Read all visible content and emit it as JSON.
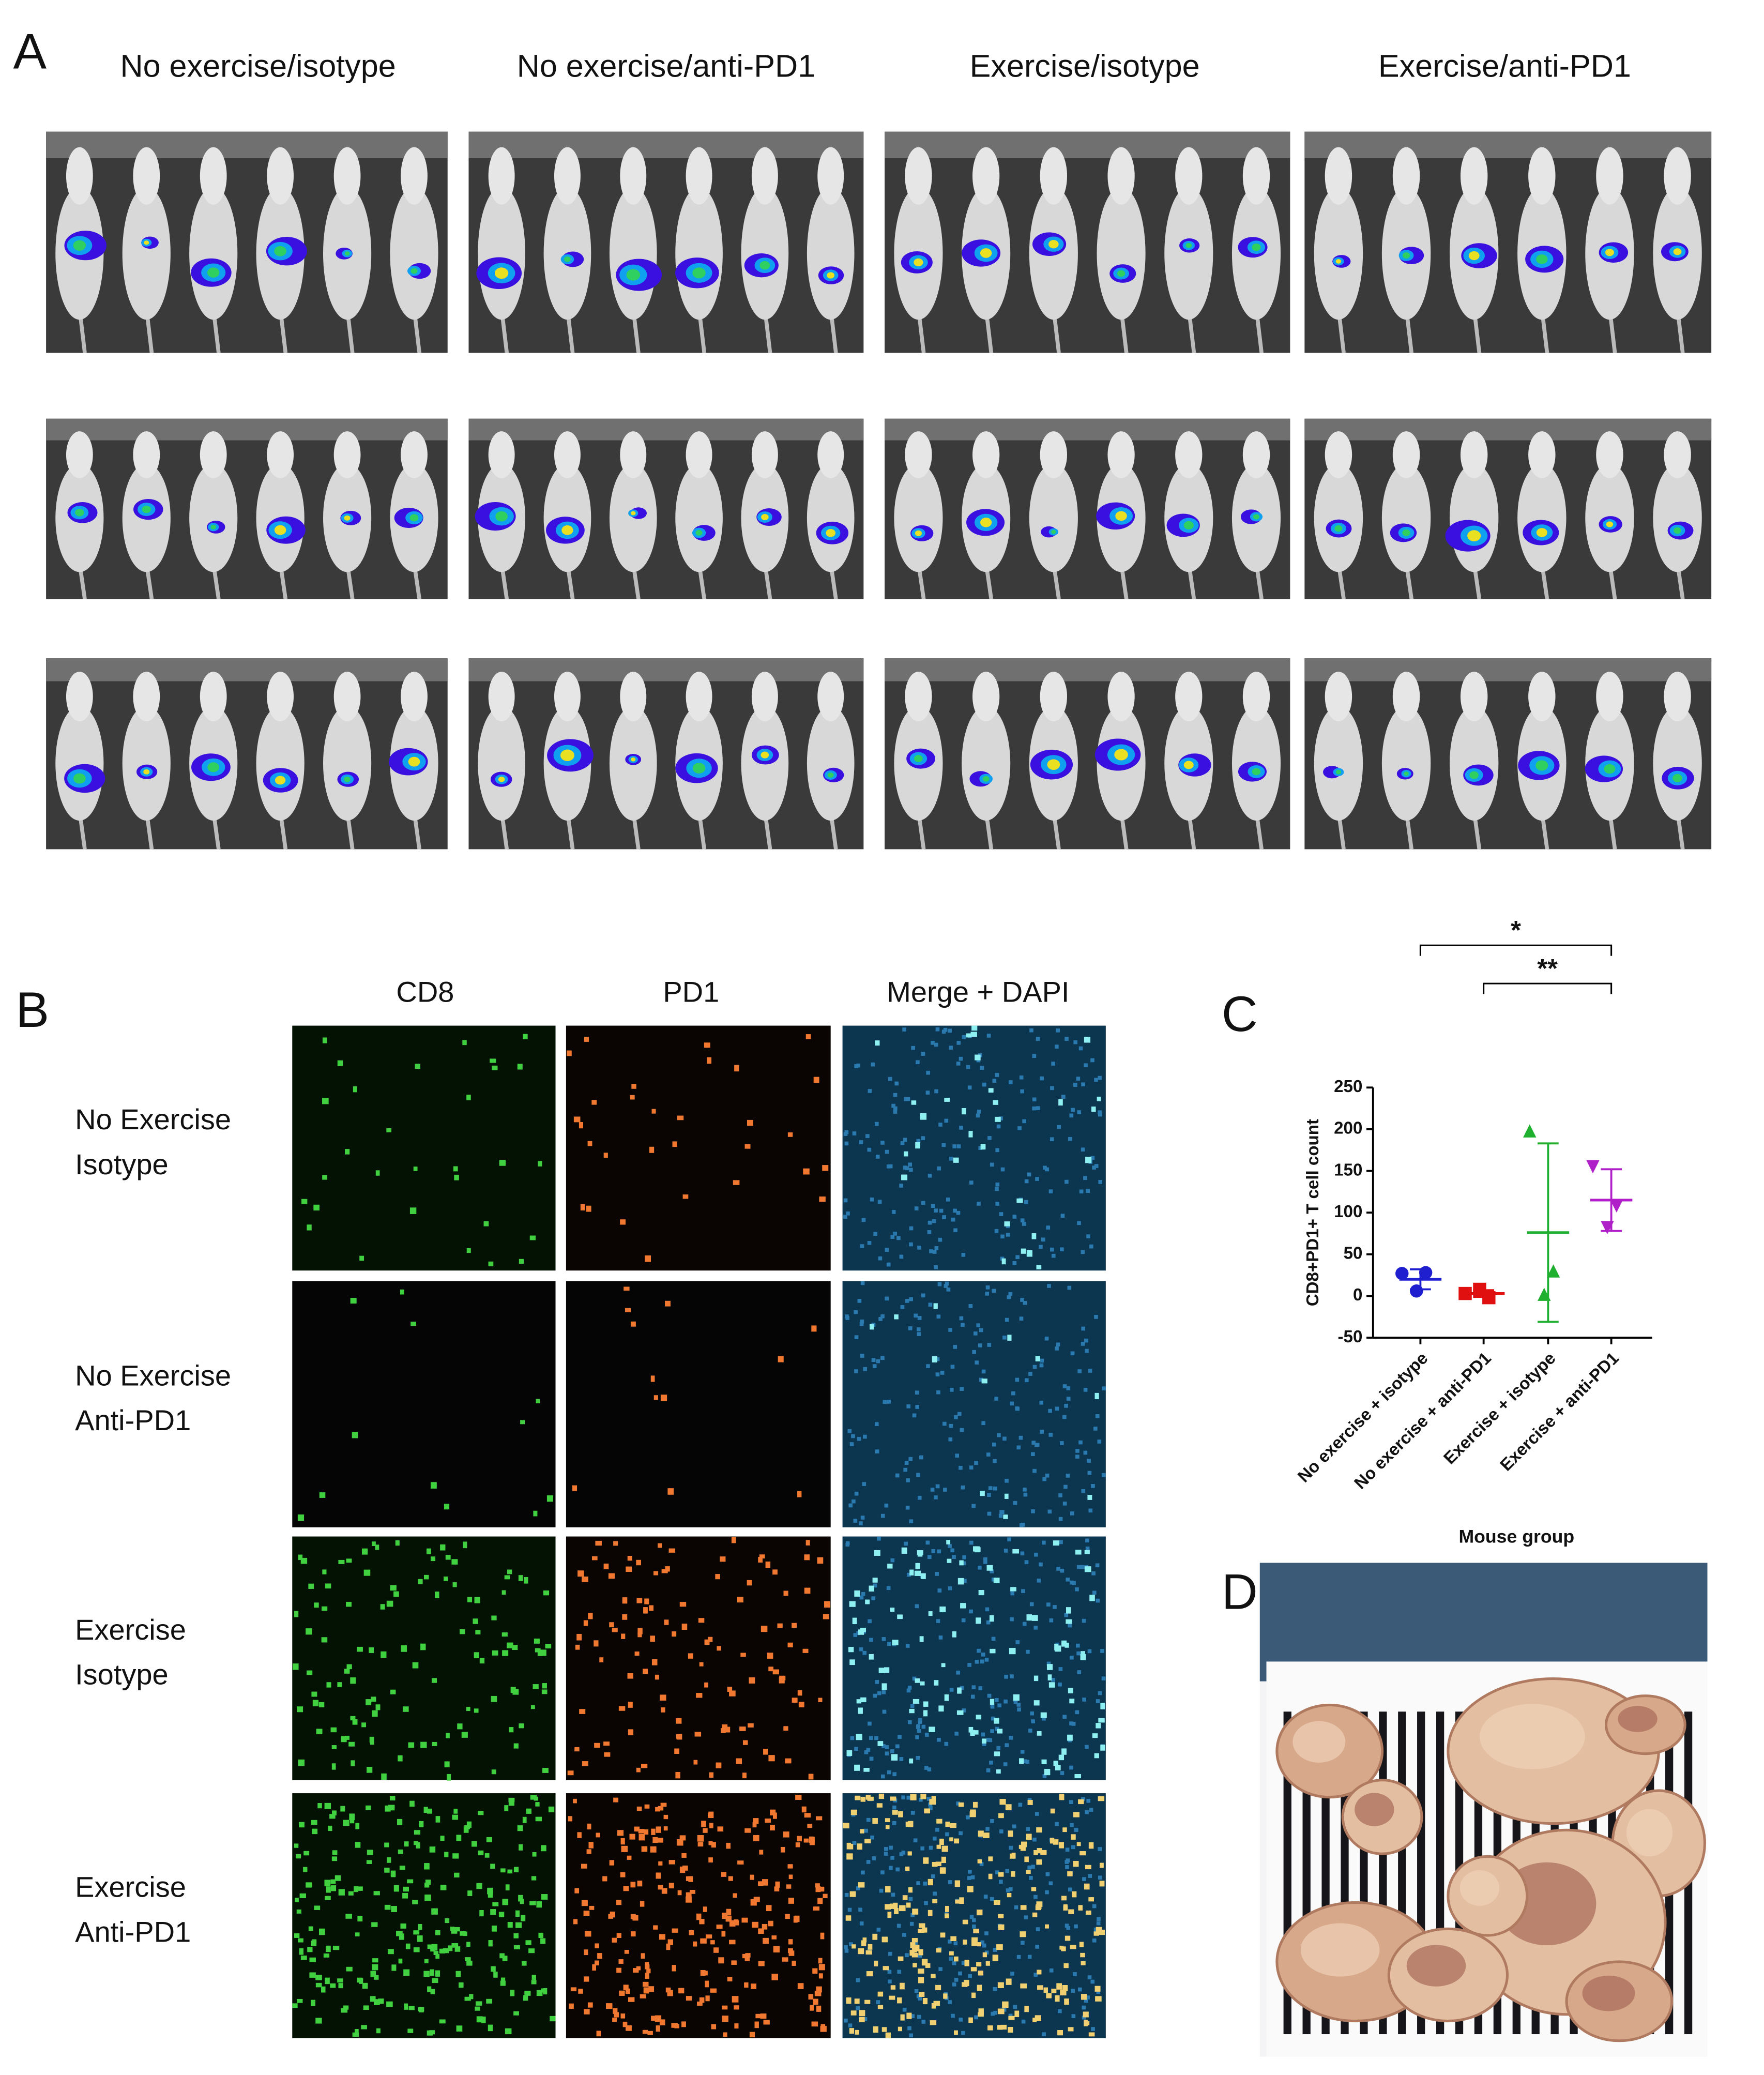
{
  "panel_a": {
    "label": "A",
    "columns": [
      "No exercise/isotype",
      "No exercise/anti-PD1",
      "Exercise/isotype",
      "Exercise/anti-PD1"
    ]
  },
  "panel_b": {
    "label": "B",
    "columns": [
      "CD8",
      "PD1",
      "Merge + DAPI"
    ],
    "rows": [
      [
        "No Exercise",
        "Isotype"
      ],
      [
        "No Exercise",
        "Anti-PD1"
      ],
      [
        "Exercise",
        "Isotype"
      ],
      [
        "Exercise",
        "Anti-PD1"
      ]
    ]
  },
  "chart_data": {
    "type": "scatter",
    "label": "C",
    "categories": [
      "No exercise + isotype",
      "No exercise + anti-PD1",
      "Exercise + isotype",
      "Exercise + anti-PD1"
    ],
    "points": [
      [
        27,
        28,
        6
      ],
      [
        3,
        -2,
        8
      ],
      [
        198,
        30,
        2
      ],
      [
        155,
        108,
        82
      ]
    ],
    "means": [
      20,
      3,
      76,
      115
    ],
    "sd": [
      12,
      4,
      107,
      37
    ],
    "colors": [
      "#1f1fd0",
      "#e01010",
      "#20b030",
      "#b020c8"
    ],
    "markers": [
      "circle",
      "square",
      "triangle",
      "triangle-down"
    ],
    "xlabel": "Mouse group",
    "ylabel": "CD8+PD1+ T cell count",
    "ylim": [
      -50,
      250
    ],
    "yticks": [
      -50,
      0,
      50,
      100,
      150,
      200,
      250
    ],
    "significance": [
      {
        "from": 0,
        "to": 3,
        "label": "*"
      },
      {
        "from": 1,
        "to": 3,
        "label": "**"
      }
    ]
  },
  "panel_d": {
    "label": "D"
  }
}
